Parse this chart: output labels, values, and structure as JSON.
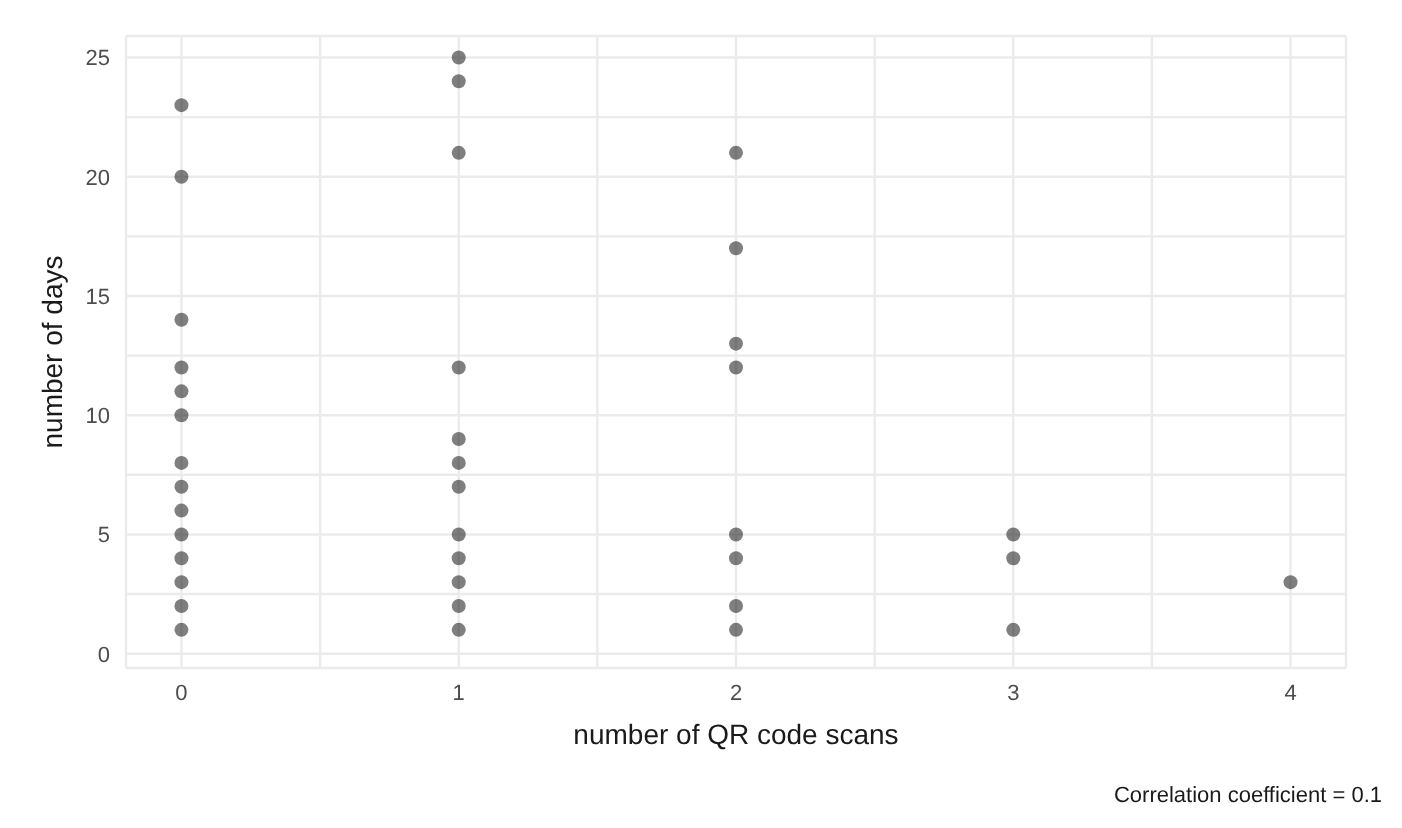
{
  "chart_data": {
    "type": "scatter",
    "xlabel": "number of QR code scans",
    "ylabel": "number of days",
    "x": [
      0,
      0,
      0,
      0,
      0,
      0,
      0,
      0,
      0,
      0,
      0,
      0,
      0,
      0,
      1,
      1,
      1,
      1,
      1,
      1,
      1,
      1,
      1,
      1,
      1,
      1,
      2,
      2,
      2,
      2,
      2,
      2,
      2,
      2,
      3,
      3,
      3,
      4
    ],
    "series": [
      {
        "color": "#000000",
        "values": [
          1,
          2,
          3,
          4,
          5,
          6,
          7,
          8,
          10,
          11,
          12,
          14,
          20,
          23,
          1,
          2,
          3,
          4,
          5,
          7,
          8,
          9,
          12,
          21,
          24,
          25,
          1,
          2,
          4,
          5,
          12,
          13,
          17,
          21,
          1,
          4,
          5,
          3
        ]
      }
    ],
    "xlim": [
      -0.2,
      4.2
    ],
    "ylim": [
      -0.6,
      25.9
    ],
    "xticks": [
      0,
      {
        "value": 0.5,
        "label": null
      },
      1,
      {
        "value": 1.5,
        "label": null
      },
      2,
      {
        "value": 2.5,
        "label": null
      },
      3,
      {
        "value": 3.5,
        "label": null
      },
      4
    ],
    "yticks": [
      0,
      {
        "value": 2.5,
        "label": null
      },
      5,
      {
        "value": 7.5,
        "label": null
      },
      10,
      {
        "value": 12.5,
        "label": null
      },
      15,
      {
        "value": 17.5,
        "label": null
      },
      20,
      {
        "value": 22.5,
        "label": null
      },
      25
    ],
    "grid": true,
    "marker": "circle",
    "annotations": [
      "Correlation coefficient = 0.1"
    ]
  }
}
